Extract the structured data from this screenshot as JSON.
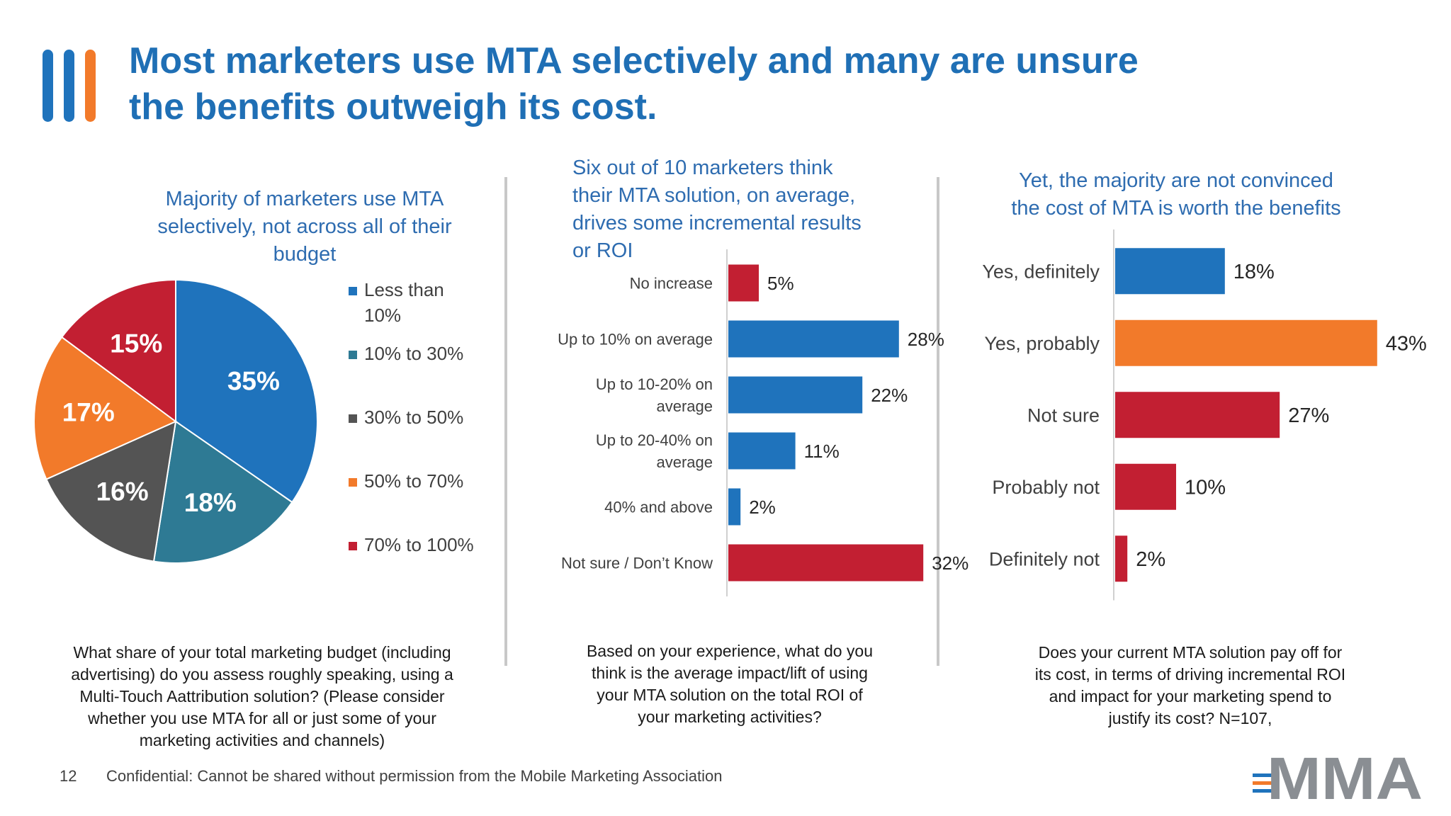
{
  "title_lines": [
    "Most marketers use MTA selectively and many are unsure",
    "the benefits outweigh its cost."
  ],
  "colors": {
    "blue": "#1f73bc",
    "teal": "#2e7a94",
    "gray": "#545454",
    "orange": "#f27a2a",
    "red": "#c21f32",
    "title": "#1f6fb5"
  },
  "panel1": {
    "subtitle_lines": [
      "Majority of marketers use MTA",
      "selectively, not across all of their",
      "budget"
    ],
    "question_lines": [
      "What share of your total marketing budget (including",
      "advertising) do you assess roughly speaking, using a",
      "Multi-Touch Aattribution solution? (Please consider",
      "whether you use MTA for all or just some of your",
      "marketing activities and channels)"
    ]
  },
  "panel2": {
    "subtitle_lines": [
      "Six out of 10 marketers think",
      "their MTA solution, on average,",
      "drives some incremental results",
      "or ROI"
    ],
    "question_lines": [
      "Based on your experience, what do you",
      "think is the average impact/lift of using",
      "your MTA solution on the total ROI of",
      "your marketing activities?"
    ]
  },
  "panel3": {
    "subtitle_lines": [
      "Yet, the majority are not convinced",
      "the cost of MTA is worth the benefits"
    ],
    "question_lines": [
      "Does your current MTA solution pay off for",
      "its cost, in terms of driving incremental ROI",
      "and impact for your marketing spend to",
      "justify its cost? N=107,"
    ]
  },
  "chart_data": [
    {
      "type": "pie",
      "slices": [
        {
          "label": "Less than 10%",
          "label_lines": [
            "Less than",
            "10%"
          ],
          "value": 35,
          "display": "35%",
          "color": "#1f73bc"
        },
        {
          "label": "10% to 30%",
          "label_lines": [
            "10% to 30%"
          ],
          "value": 18,
          "display": "18%",
          "color": "#2e7a94"
        },
        {
          "label": "30% to 50%",
          "label_lines": [
            "30% to 50%"
          ],
          "value": 16,
          "display": "16%",
          "color": "#545454"
        },
        {
          "label": "50% to 70%",
          "label_lines": [
            "50% to 70%"
          ],
          "value": 17,
          "display": "17%",
          "color": "#f27a2a"
        },
        {
          "label": "70% to 100%",
          "label_lines": [
            "70% to 100%"
          ],
          "value": 15,
          "display": "15%",
          "color": "#c21f32"
        }
      ],
      "legend_position": "right"
    },
    {
      "type": "bar",
      "orientation": "horizontal",
      "categories": [
        [
          "No increase"
        ],
        [
          "Up to 10% on average"
        ],
        [
          "Up to 10-20% on",
          "average"
        ],
        [
          "Up to 20-40% on",
          "average"
        ],
        [
          "40% and above"
        ],
        [
          "Not sure / Don’t Know"
        ]
      ],
      "values": [
        5,
        28,
        22,
        11,
        2,
        32
      ],
      "value_labels": [
        "5%",
        "28%",
        "22%",
        "11%",
        "2%",
        "32%"
      ],
      "bar_colors": [
        "#c21f32",
        "#1f73bc",
        "#1f73bc",
        "#1f73bc",
        "#1f73bc",
        "#c21f32"
      ]
    },
    {
      "type": "bar",
      "orientation": "horizontal",
      "categories": [
        [
          "Yes, definitely"
        ],
        [
          "Yes, probably"
        ],
        [
          "Not sure"
        ],
        [
          "Probably not"
        ],
        [
          "Definitely not"
        ]
      ],
      "values": [
        18,
        43,
        27,
        10,
        2
      ],
      "value_labels": [
        "18%",
        "43%",
        "27%",
        "10%",
        "2%"
      ],
      "bar_colors": [
        "#1f73bc",
        "#f27a2a",
        "#c21f32",
        "#c21f32",
        "#c21f32"
      ]
    }
  ],
  "footer": {
    "page_number": "12",
    "confidential": "Confidential: Cannot be shared without permission from the Mobile Marketing Association"
  },
  "logo": {
    "text": "MMA"
  }
}
